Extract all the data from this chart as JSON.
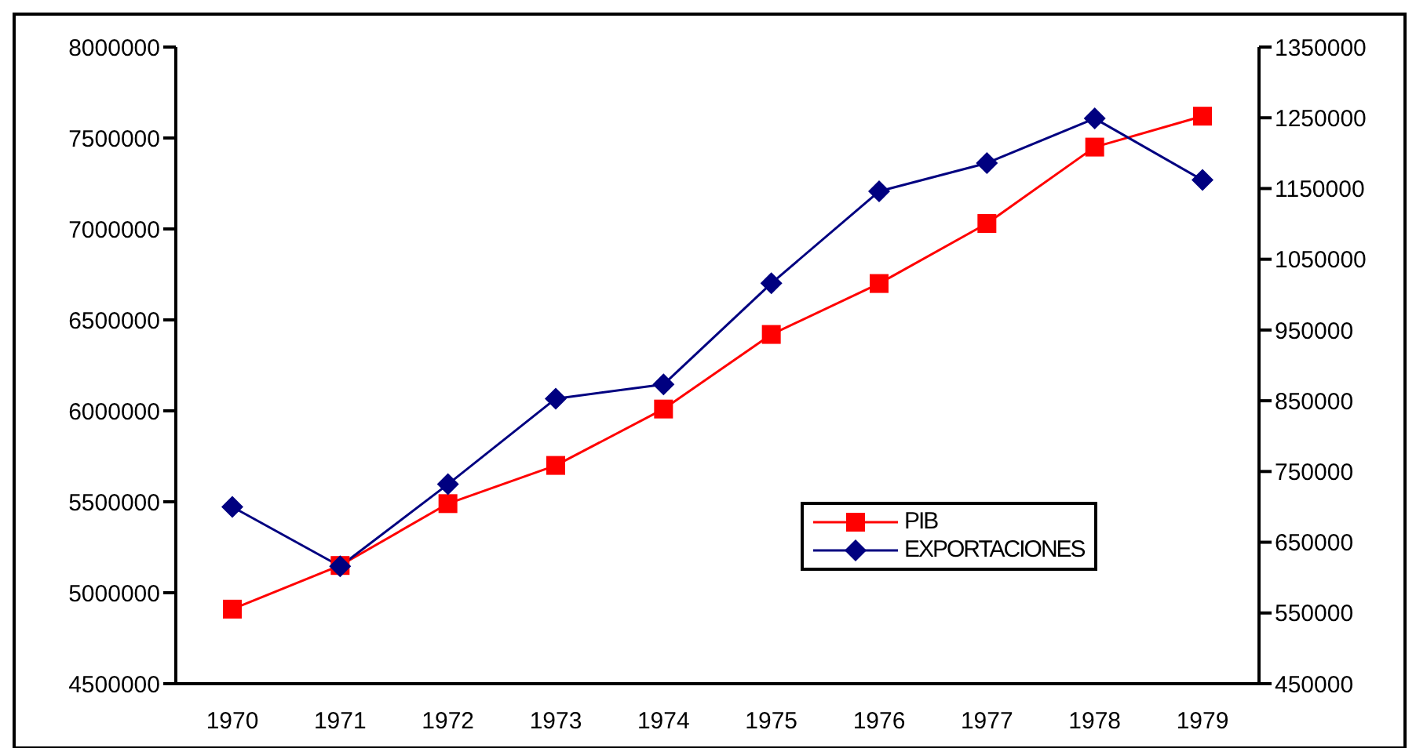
{
  "chart_data": {
    "type": "line",
    "categories": [
      "1970",
      "1971",
      "1972",
      "1973",
      "1974",
      "1975",
      "1976",
      "1977",
      "1978",
      "1979"
    ],
    "series": [
      {
        "name": "PIB",
        "color": "#ff0000",
        "marker": "square",
        "values": [
          4910000,
          5150000,
          5490000,
          5700000,
          6010000,
          6420000,
          6700000,
          7030000,
          7450000,
          7620000
        ]
      },
      {
        "name": "EXPORTACIONES",
        "color": "#000080",
        "marker": "diamond",
        "axis": "y2",
        "values": [
          700000,
          616000,
          732000,
          853000,
          873000,
          1016000,
          1146000,
          1186000,
          1249000,
          1162000
        ]
      }
    ],
    "ylim": [
      4500000,
      8000000
    ],
    "yticks": [
      4500000,
      5000000,
      5500000,
      6000000,
      6500000,
      7000000,
      7500000,
      8000000
    ],
    "y2lim": [
      450000,
      1350000
    ],
    "y2ticks": [
      450000,
      550000,
      650000,
      750000,
      850000,
      950000,
      1050000,
      1150000,
      1250000,
      1350000
    ],
    "legend": "bottom right",
    "line_style": "solid"
  }
}
